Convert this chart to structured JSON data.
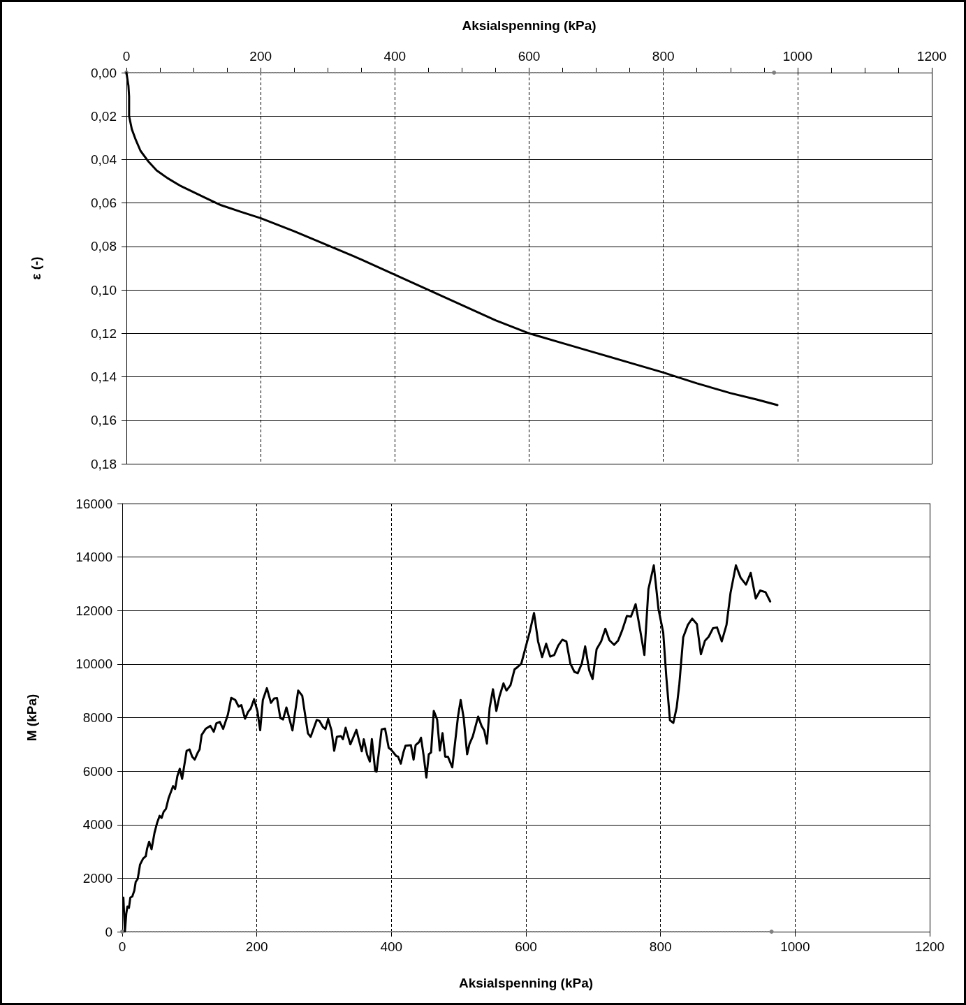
{
  "chart_data": [
    {
      "type": "line",
      "xlabel": "Aksialspenning (kPa)",
      "ylabel": "ε (-)",
      "xlim": [
        0,
        1200
      ],
      "xticks": [
        0,
        {
          "value": 50,
          "label": null
        },
        {
          "value": 100,
          "label": null
        },
        {
          "value": 150,
          "label": null
        },
        200,
        {
          "value": 250,
          "label": null
        },
        {
          "value": 300,
          "label": null
        },
        {
          "value": 350,
          "label": null
        },
        400,
        {
          "value": 450,
          "label": null
        },
        {
          "value": 500,
          "label": null
        },
        {
          "value": 550,
          "label": null
        },
        600,
        {
          "value": 650,
          "label": null
        },
        {
          "value": 700,
          "label": null
        },
        {
          "value": 750,
          "label": null
        },
        800,
        {
          "value": 850,
          "label": null
        },
        {
          "value": 900,
          "label": null
        },
        {
          "value": 950,
          "label": null
        },
        1000,
        {
          "value": 1050,
          "label": null
        },
        {
          "value": 1100,
          "label": null
        },
        {
          "value": 1150,
          "label": null
        },
        1200
      ],
      "ylim": [
        0.18,
        0
      ],
      "yticks": [
        {
          "value": 0,
          "label": "0,00"
        },
        {
          "value": 0.02,
          "label": "0,02"
        },
        {
          "value": 0.04,
          "label": "0,04"
        },
        {
          "value": 0.06,
          "label": "0,06"
        },
        {
          "value": 0.08,
          "label": "0,08"
        },
        {
          "value": 0.1,
          "label": "0,10"
        },
        {
          "value": 0.12,
          "label": "0,12"
        },
        {
          "value": 0.14,
          "label": "0,14"
        },
        {
          "value": 0.16,
          "label": "0,16"
        },
        {
          "value": 0.18,
          "label": "0,18"
        }
      ],
      "grid": true,
      "series": [
        {
          "color": "#808080",
          "line_style": "dotted",
          "marker": "circle",
          "x": [
            0,
            965
          ],
          "values": [
            0,
            0
          ]
        },
        {
          "color": "#000000",
          "line_style": "solid",
          "marker": "none",
          "x": [
            0,
            3,
            4,
            4,
            8,
            14,
            21,
            33,
            45,
            61,
            80,
            100,
            120,
            141,
            170,
            200,
            250,
            304,
            350,
            400,
            450,
            500,
            550,
            600,
            650,
            700,
            750,
            800,
            820,
            850,
            900,
            940,
            970
          ],
          "values": [
            0,
            0.006,
            0.011,
            0.02,
            0.026,
            0.031,
            0.036,
            0.041,
            0.045,
            0.0485,
            0.052,
            0.055,
            0.058,
            0.061,
            0.064,
            0.067,
            0.073,
            0.08,
            0.086,
            0.093,
            0.1,
            0.107,
            0.114,
            0.12,
            0.1245,
            0.129,
            0.1335,
            0.138,
            0.14,
            0.143,
            0.1475,
            0.1505,
            0.153
          ]
        }
      ]
    },
    {
      "type": "line",
      "xlabel": "Aksialspenning (kPa)",
      "ylabel": "M (kPa)",
      "xlim": [
        0,
        1200
      ],
      "xticks": [
        0,
        200,
        400,
        600,
        800,
        1000,
        1200
      ],
      "ylim": [
        0,
        16000
      ],
      "yticks": [
        0,
        2000,
        4000,
        6000,
        8000,
        10000,
        12000,
        14000,
        16000
      ],
      "grid": true,
      "series": [
        {
          "color": "#808080",
          "line_style": "dotted",
          "marker": "circle",
          "x": [
            0,
            965
          ],
          "values": [
            0,
            0
          ]
        },
        {
          "color": "#000000",
          "line_style": "solid",
          "marker": "none",
          "x": [
            1.7,
            4,
            6,
            7.7,
            10,
            12,
            15,
            18,
            20,
            23,
            26.5,
            31,
            35,
            37,
            40,
            43.6,
            48,
            52,
            55.6,
            58.5,
            61.5,
            65,
            69,
            75.6,
            78.6,
            82,
            85.5,
            89,
            95.7,
            100,
            104,
            107.7,
            112,
            115,
            118,
            124,
            131,
            136,
            140,
            145,
            150,
            157,
            162,
            168,
            173,
            177,
            182.5,
            187,
            191,
            196,
            201,
            205,
            209,
            215,
            221,
            226,
            230,
            235,
            239,
            244,
            253,
            261.5,
            267.5,
            276,
            280,
            289,
            293,
            298,
            302,
            306,
            311,
            315,
            319,
            325,
            328,
            332,
            339,
            348,
            356,
            359,
            364,
            368,
            371,
            376,
            378,
            385.5,
            390.6,
            396,
            400,
            407,
            410,
            414,
            417.6,
            421,
            429,
            433,
            436,
            441,
            444,
            448,
            452,
            455.6,
            459,
            463,
            468,
            472,
            476,
            480,
            484,
            490.5,
            499,
            503,
            507.5,
            512.6,
            516,
            521,
            525.6,
            529,
            534,
            538,
            542,
            546,
            551,
            556,
            560.6,
            566.6,
            571,
            577,
            583,
            588,
            593,
            599,
            605.6,
            612,
            618,
            624,
            630,
            636,
            642,
            648,
            654,
            660,
            666,
            672,
            677,
            683,
            688,
            694,
            699,
            705,
            711.8,
            718,
            724,
            731,
            737,
            743,
            750,
            756,
            763,
            770,
            776,
            782,
            790,
            797,
            804,
            808.6,
            814,
            819,
            824,
            828,
            833.7,
            840.5,
            847,
            854,
            860,
            866,
            871.5,
            878,
            884,
            891,
            898,
            904,
            912,
            919,
            927,
            934,
            941.5,
            948,
            956,
            963
          ],
          "values": [
            1270,
            0,
            670,
            940,
            890,
            1270,
            1320,
            1540,
            1860,
            1970,
            2510,
            2730,
            2820,
            3110,
            3360,
            3080,
            3700,
            4080,
            4330,
            4250,
            4480,
            4590,
            5000,
            5440,
            5330,
            5820,
            6090,
            5710,
            6760,
            6810,
            6540,
            6430,
            6680,
            6810,
            7350,
            7580,
            7690,
            7470,
            7790,
            7840,
            7580,
            8110,
            8740,
            8660,
            8410,
            8470,
            7960,
            8210,
            8340,
            8690,
            8230,
            7530,
            8660,
            9100,
            8550,
            8720,
            8730,
            7980,
            7930,
            8380,
            7520,
            9010,
            8820,
            7410,
            7280,
            7910,
            7880,
            7660,
            7570,
            7950,
            7520,
            6760,
            7280,
            7310,
            7190,
            7620,
            7000,
            7540,
            6740,
            7190,
            6610,
            6360,
            7200,
            6000,
            5980,
            7560,
            7590,
            6870,
            6790,
            6570,
            6540,
            6280,
            6680,
            6950,
            6970,
            6430,
            6970,
            7080,
            7250,
            6570,
            5760,
            6630,
            6700,
            8250,
            7930,
            6770,
            7420,
            6540,
            6540,
            6140,
            8040,
            8660,
            7980,
            6630,
            7010,
            7300,
            7730,
            8040,
            7690,
            7520,
            7030,
            8360,
            9060,
            8250,
            8790,
            9280,
            9010,
            9210,
            9800,
            9900,
            10010,
            10580,
            11200,
            11910,
            10850,
            10260,
            10760,
            10280,
            10340,
            10690,
            10910,
            10850,
            10020,
            9710,
            9660,
            10020,
            10660,
            9770,
            9440,
            10560,
            10850,
            11320,
            10890,
            10720,
            10880,
            11260,
            11800,
            11770,
            12240,
            11230,
            10340,
            12800,
            13690,
            12050,
            11180,
            9520,
            7900,
            7800,
            8380,
            9260,
            11000,
            11460,
            11700,
            11500,
            10370,
            10870,
            11020,
            11340,
            11370,
            10850,
            11460,
            12660,
            13690,
            13230,
            12970,
            13410,
            12450,
            12750,
            12690,
            12340
          ]
        }
      ]
    }
  ]
}
